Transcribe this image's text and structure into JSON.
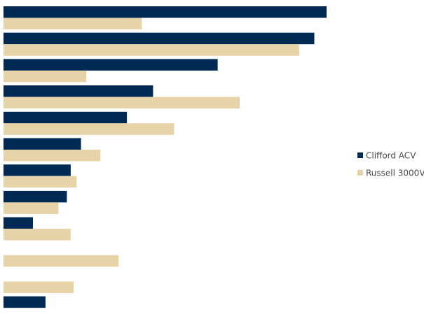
{
  "chart_data": {
    "type": "bar",
    "orientation": "horizontal",
    "xlim": [
      0,
      100
    ],
    "grid": false,
    "legend_position": "right",
    "series": [
      {
        "name": "Clifford ACV",
        "color": "#002a54",
        "values": [
          100,
          96.2,
          66.3,
          46.3,
          38.2,
          24,
          20.8,
          19.6,
          9.1,
          0,
          0,
          13
        ]
      },
      {
        "name": "Russell 3000V",
        "color": "#e6d3a8",
        "values": [
          42.8,
          91.5,
          25.6,
          73.1,
          52.8,
          30,
          22.6,
          17,
          20.8,
          35.6,
          21.7,
          0
        ]
      }
    ]
  }
}
